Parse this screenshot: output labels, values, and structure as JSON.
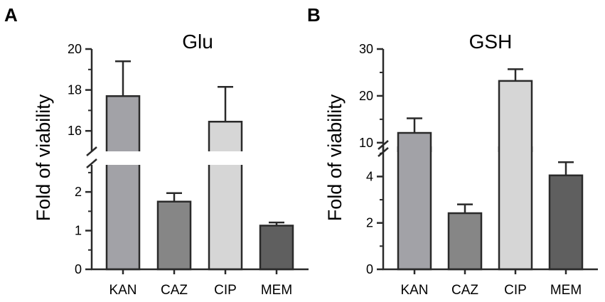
{
  "figure": {
    "panels": [
      {
        "letter": "A",
        "title": "Glu",
        "ylabel": "Fold of viability"
      },
      {
        "letter": "B",
        "title": "GSH",
        "ylabel": "Fold of viability"
      }
    ]
  },
  "chart_data": [
    {
      "type": "bar",
      "title": "Glu",
      "ylabel": "Fold of viability",
      "xlabel": "",
      "categories": [
        "KAN",
        "CAZ",
        "CIP",
        "MEM"
      ],
      "values": [
        17.7,
        1.75,
        16.45,
        1.13
      ],
      "errors": [
        1.7,
        0.22,
        1.7,
        0.08
      ],
      "bar_colors": [
        "#a2a2a7",
        "#868686",
        "#d6d6d6",
        "#5f5f5f"
      ],
      "broken_axis": true,
      "segments": [
        {
          "ylim": [
            0,
            2.7
          ],
          "ticks": [
            0,
            1,
            2
          ]
        },
        {
          "ylim": [
            15,
            20
          ],
          "ticks": [
            16,
            18,
            20
          ]
        }
      ]
    },
    {
      "type": "bar",
      "title": "GSH",
      "ylabel": "Fold of viability",
      "xlabel": "",
      "categories": [
        "KAN",
        "CAZ",
        "CIP",
        "MEM"
      ],
      "values": [
        12.1,
        2.42,
        23.2,
        4.05
      ],
      "errors": [
        3.1,
        0.38,
        2.5,
        0.57
      ],
      "bar_colors": [
        "#a2a2a7",
        "#868686",
        "#d6d6d6",
        "#5f5f5f"
      ],
      "broken_axis": true,
      "segments": [
        {
          "ylim": [
            0,
            5.3
          ],
          "ticks": [
            0,
            2,
            4
          ]
        },
        {
          "ylim": [
            8,
            30
          ],
          "ticks": [
            10,
            20,
            30
          ]
        }
      ]
    }
  ]
}
